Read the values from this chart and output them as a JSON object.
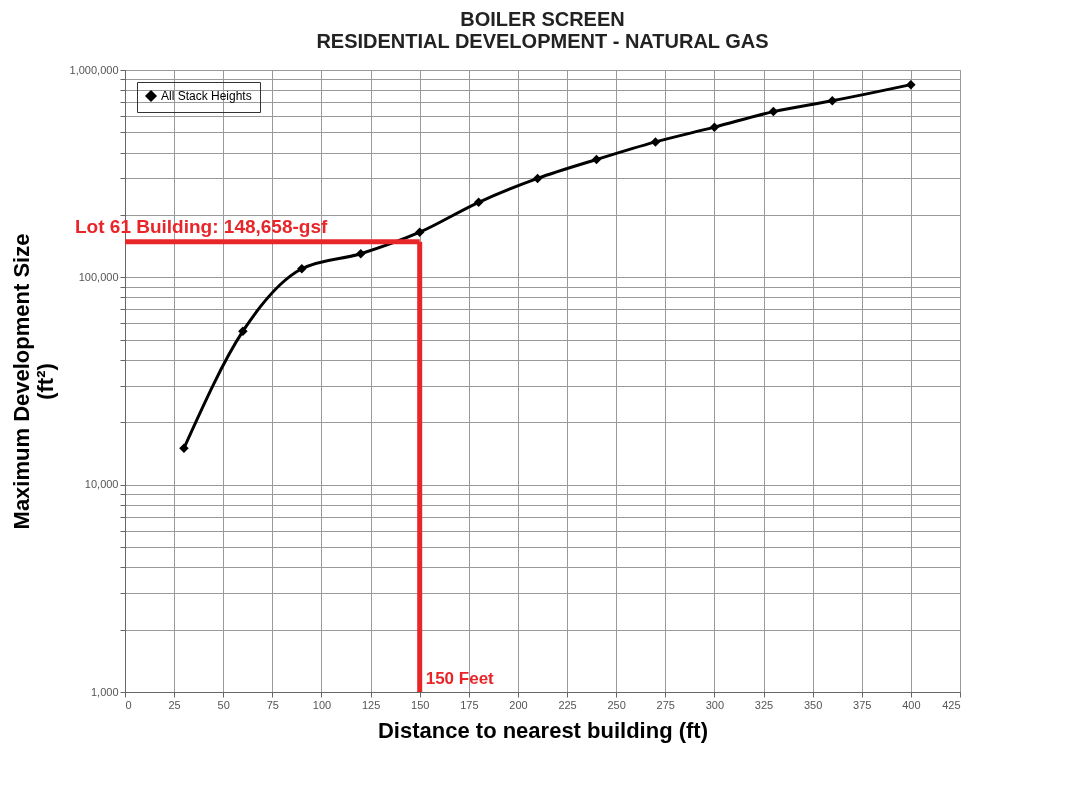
{
  "chart_data": {
    "type": "line",
    "title": "BOILER SCREEN\nRESIDENTIAL DEVELOPMENT - NATURAL GAS",
    "xlabel": "Distance to nearest building (ft)",
    "ylabel": "Maximum Development  Size\n(ft²)",
    "x": [
      30,
      60,
      90,
      120,
      150,
      180,
      210,
      240,
      270,
      300,
      330,
      360,
      400
    ],
    "series": [
      {
        "name": "All Stack Heights",
        "color": "#000000",
        "values": [
          15000,
          55000,
          110000,
          130000,
          165000,
          230000,
          300000,
          370000,
          450000,
          530000,
          630000,
          710000,
          850000
        ]
      }
    ],
    "xlim": [
      0,
      425
    ],
    "xticks": [
      0,
      25,
      50,
      75,
      100,
      125,
      150,
      175,
      200,
      225,
      250,
      275,
      300,
      325,
      350,
      375,
      400,
      425
    ],
    "ylim": [
      1000,
      1000000
    ],
    "yticks": [
      {
        "value": 1000,
        "label": "1,000"
      },
      {
        "value": 2000,
        "label": null
      },
      {
        "value": 3000,
        "label": null
      },
      {
        "value": 4000,
        "label": null
      },
      {
        "value": 5000,
        "label": null
      },
      {
        "value": 6000,
        "label": null
      },
      {
        "value": 7000,
        "label": null
      },
      {
        "value": 8000,
        "label": null
      },
      {
        "value": 9000,
        "label": null
      },
      {
        "value": 10000,
        "label": "10,000"
      },
      {
        "value": 20000,
        "label": null
      },
      {
        "value": 30000,
        "label": null
      },
      {
        "value": 40000,
        "label": null
      },
      {
        "value": 50000,
        "label": null
      },
      {
        "value": 60000,
        "label": null
      },
      {
        "value": 70000,
        "label": null
      },
      {
        "value": 80000,
        "label": null
      },
      {
        "value": 90000,
        "label": null
      },
      {
        "value": 100000,
        "label": "100,000"
      },
      {
        "value": 200000,
        "label": null
      },
      {
        "value": 300000,
        "label": null
      },
      {
        "value": 400000,
        "label": null
      },
      {
        "value": 500000,
        "label": null
      },
      {
        "value": 600000,
        "label": null
      },
      {
        "value": 700000,
        "label": null
      },
      {
        "value": 800000,
        "label": null
      },
      {
        "value": 900000,
        "label": null
      },
      {
        "value": 1000000,
        "label": "1,000,000"
      }
    ],
    "log": "y",
    "grid": true,
    "legend": "top left",
    "marker": "diamond",
    "line_style": "solid",
    "ref_lines": [
      {
        "axis": "y",
        "value": 148658,
        "label": "Lot 61 Building: 148,658-gsf",
        "color": "#e8262a"
      },
      {
        "axis": "x",
        "value": 150,
        "label": "150 Feet",
        "color": "#e8262a"
      }
    ]
  }
}
